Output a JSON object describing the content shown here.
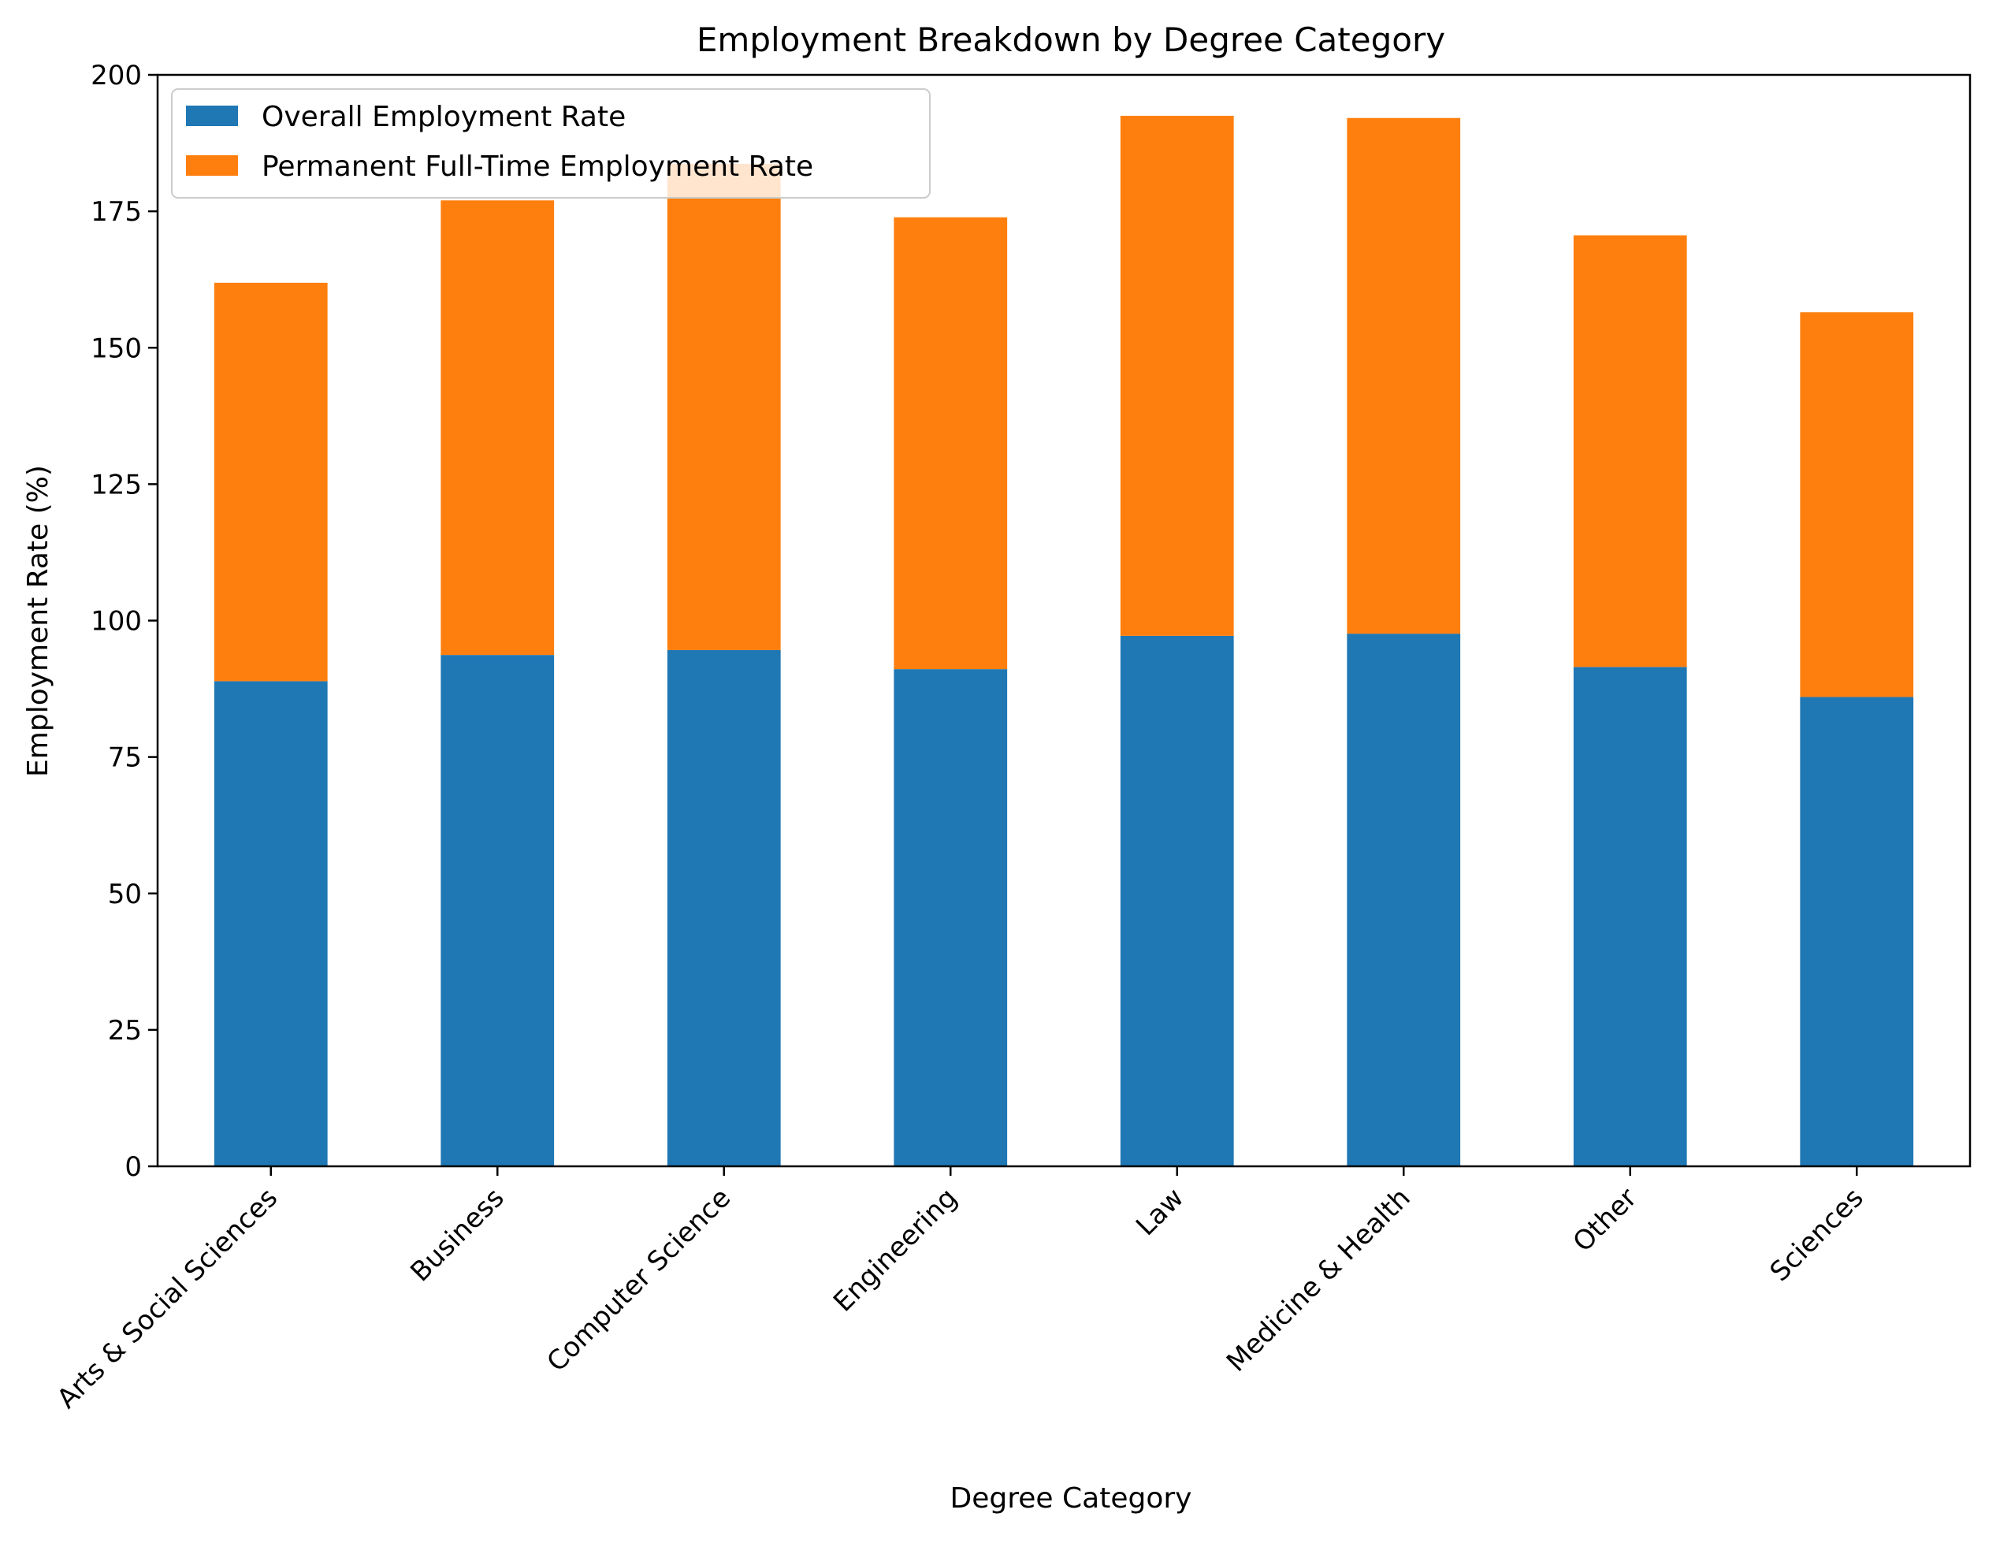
{
  "chart_data": {
    "type": "bar",
    "stacked": true,
    "title": "Employment Breakdown by Degree Category",
    "xlabel": "Degree Category",
    "ylabel": "Employment Rate (%)",
    "ylim": [
      0,
      200
    ],
    "yticks": [
      0,
      25,
      50,
      75,
      100,
      125,
      150,
      175,
      200
    ],
    "grid": false,
    "legend_position": "top-left",
    "categories": [
      "Arts & Social Sciences",
      "Business",
      "Computer Science",
      "Engineering",
      "Law",
      "Medicine & Health",
      "Other",
      "Sciences"
    ],
    "series": [
      {
        "name": "Overall Employment Rate",
        "color": "#1f77b4",
        "values": [
          88.9,
          93.7,
          94.6,
          91.1,
          97.2,
          97.6,
          91.5,
          86.0
        ]
      },
      {
        "name": "Permanent Full-Time Employment Rate",
        "color": "#ff7f0e",
        "values": [
          73.0,
          83.3,
          89.1,
          82.8,
          95.3,
          94.5,
          79.1,
          70.5
        ]
      }
    ]
  }
}
